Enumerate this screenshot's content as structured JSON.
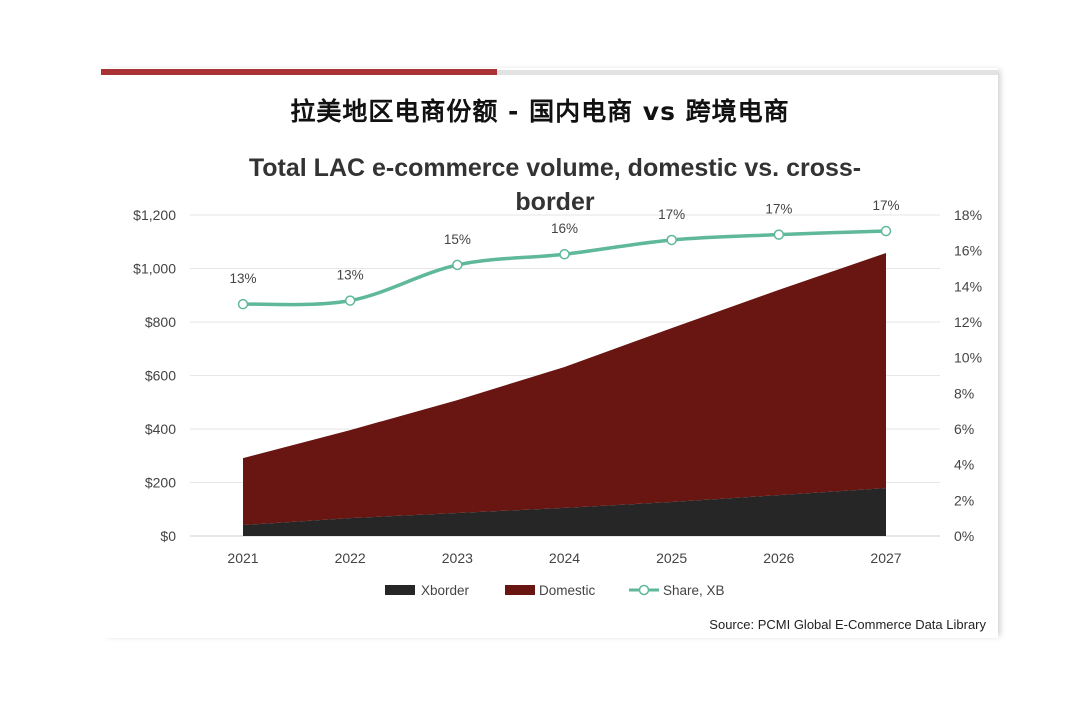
{
  "header": {
    "title_cn": "拉美地区电商份额 - 国内电商 vs 跨境电商"
  },
  "source": "Source: PCMI Global E-Commerce Data Library",
  "colors": {
    "accent_bar": "#a83236",
    "xborder": "#262626",
    "domestic": "#691511",
    "share": "#5fb89a"
  },
  "chart_data": {
    "type": "area",
    "title_lines": [
      "Total LAC e-commerce volume, domestic vs. cross-",
      "border"
    ],
    "categories": [
      "2021",
      "2022",
      "2023",
      "2024",
      "2025",
      "2026",
      "2027"
    ],
    "series": [
      {
        "name": "Xborder",
        "type": "stacked-area",
        "axis": "left",
        "values": [
          41,
          67,
          86,
          105,
          127,
          153,
          179
        ]
      },
      {
        "name": "Domestic",
        "type": "stacked-area",
        "axis": "left",
        "values": [
          250,
          329,
          422,
          527,
          650,
          767,
          879
        ]
      },
      {
        "name": "Share, XB",
        "type": "line",
        "axis": "right",
        "values": [
          13.0,
          13.2,
          15.2,
          15.8,
          16.6,
          16.9,
          17.1
        ],
        "data_labels": [
          "13%",
          "13%",
          "15%",
          "16%",
          "17%",
          "17%",
          "17%"
        ]
      }
    ],
    "y_left": {
      "ylim": [
        0,
        1200
      ],
      "ticks": [
        "$0",
        "$200",
        "$400",
        "$600",
        "$800",
        "$1,000",
        "$1,200"
      ]
    },
    "y_right": {
      "ylim": [
        0,
        18
      ],
      "ticks": [
        "0%",
        "2%",
        "4%",
        "6%",
        "8%",
        "10%",
        "12%",
        "14%",
        "16%",
        "18%"
      ]
    },
    "grid": true,
    "legend": {
      "position": "bottom",
      "items": [
        "Xborder",
        "Domestic",
        "Share, XB"
      ]
    }
  }
}
